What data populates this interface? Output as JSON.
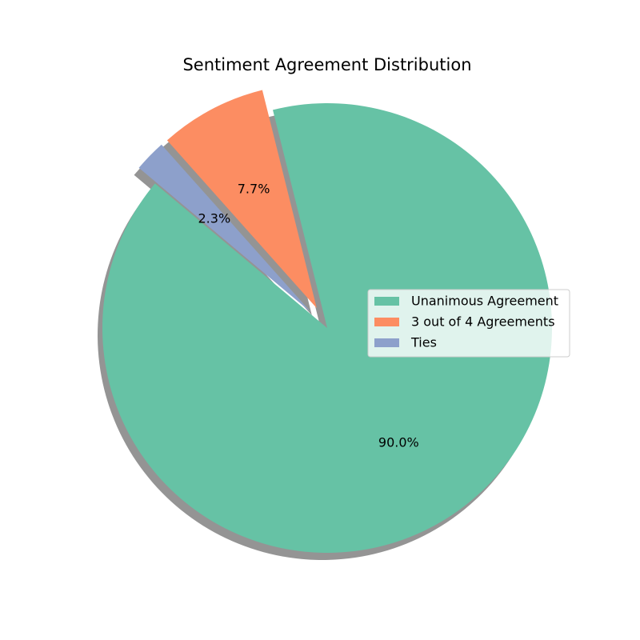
{
  "chart_data": {
    "type": "pie",
    "title": "Sentiment Agreement Distribution",
    "categories": [
      "Unanimous Agreement",
      "3 out of 4 Agreements",
      "Ties"
    ],
    "values": [
      90.0,
      7.7,
      2.3
    ],
    "value_labels": [
      "90.0%",
      "7.7%",
      "2.3%"
    ],
    "colors": [
      "#66c2a5",
      "#fc8d62",
      "#8da0cb"
    ],
    "exploded": [
      false,
      true,
      true
    ],
    "shadow": true,
    "start_angle_deg": 140,
    "legend_position": "center-right"
  }
}
